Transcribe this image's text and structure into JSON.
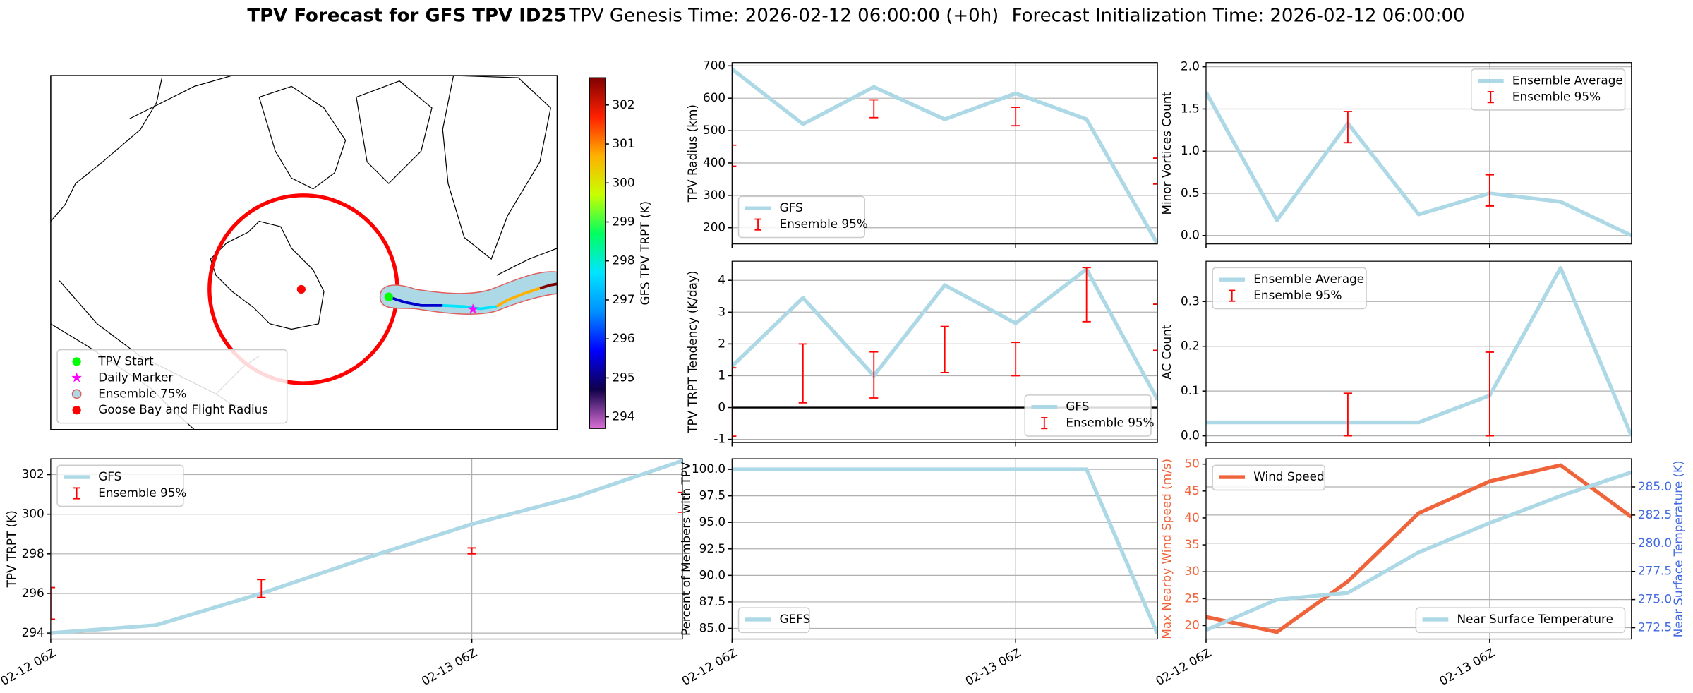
{
  "figure": {
    "title": "TPV Forecast for GFS TPV ID25",
    "subtitles": [
      "TPV Genesis Time: 2026-02-12 06:00:00 (+0h)",
      "Forecast Initialization Time: 2026-02-12 06:00:00"
    ]
  },
  "chart_data": [
    {
      "type": "map",
      "legend": "lower left",
      "legend_entries": [
        {
          "label": "TPV Start",
          "color": "#00ff00",
          "marker": "circle"
        },
        {
          "label": "Daily Marker",
          "color": "#ff00ff",
          "marker": "star"
        },
        {
          "label": "Ensemble 75%",
          "color": "#add8e6",
          "marker": "patch"
        },
        {
          "label": "Goose Bay and Flight Radius",
          "color": "#ff0000",
          "marker": "circle"
        }
      ],
      "colorbar": {
        "label": "GFS TPV TRPT (K)",
        "lim": [
          293.7,
          302.7
        ],
        "ticks": [
          294,
          295,
          296,
          297,
          298,
          299,
          300,
          301,
          302
        ],
        "colors": [
          "#da70d6",
          "#10004a",
          "#0000ff",
          "#0090ff",
          "#00e5ff",
          "#00ff60",
          "#c8ff00",
          "#ffb000",
          "#ff2000",
          "#800000"
        ]
      }
    },
    {
      "type": "line",
      "ylabel": "TPV Radius (km)",
      "x": [
        0,
        6,
        12,
        18,
        24,
        30,
        36
      ],
      "xlim": [
        0,
        36
      ],
      "xticks": [
        0,
        24
      ],
      "ylim": [
        150,
        710
      ],
      "yticks": [
        200,
        300,
        400,
        500,
        600,
        700
      ],
      "grid": true,
      "legend": "lower left",
      "series": [
        {
          "name": "GFS",
          "color": "#add8e6",
          "values": [
            690,
            520,
            635,
            535,
            615,
            535,
            150
          ]
        }
      ],
      "ensemble": {
        "name": "Ensemble 95%",
        "color": "#ff0000",
        "x": [
          0,
          12,
          24,
          36
        ],
        "low": [
          390,
          540,
          515,
          335
        ],
        "high": [
          455,
          595,
          572,
          415
        ]
      }
    },
    {
      "type": "line",
      "ylabel": "Minor Vortices Count",
      "x": [
        0,
        6,
        12,
        18,
        24,
        30,
        36
      ],
      "xlim": [
        0,
        36
      ],
      "xticks": [
        0,
        24
      ],
      "ylim": [
        -0.1,
        2.05
      ],
      "yticks": [
        {
          "value": 0,
          "label": "0.0"
        },
        {
          "value": 0.5,
          "label": "0.5"
        },
        {
          "value": 1,
          "label": "1.0"
        },
        {
          "value": 1.5,
          "label": "1.5"
        },
        {
          "value": 2,
          "label": "2.0"
        }
      ],
      "grid": true,
      "legend": "upper right",
      "series": [
        {
          "name": "Ensemble Average",
          "color": "#add8e6",
          "values": [
            1.7,
            0.18,
            1.33,
            0.25,
            0.5,
            0.4,
            0.0
          ]
        }
      ],
      "ensemble": {
        "name": "Ensemble 95%",
        "color": "#ff0000",
        "x": [
          12,
          24
        ],
        "low": [
          1.1,
          0.35
        ],
        "high": [
          1.47,
          0.72
        ]
      }
    },
    {
      "type": "line",
      "ylabel": "TPV TRPT Tendency (K/day)",
      "x": [
        0,
        6,
        12,
        18,
        24,
        30,
        36
      ],
      "xlim": [
        0,
        36
      ],
      "xticks": [
        0,
        24
      ],
      "ylim": [
        -1.1,
        4.6
      ],
      "yticks": [
        -1,
        0,
        1,
        2,
        3,
        4
      ],
      "grid": true,
      "legend": "lower right",
      "reference_line": 0,
      "series": [
        {
          "name": "GFS",
          "color": "#add8e6",
          "values": [
            1.3,
            3.45,
            1.0,
            3.85,
            2.65,
            4.35,
            0.25
          ]
        }
      ],
      "ensemble": {
        "name": "Ensemble 95%",
        "color": "#ff0000",
        "x": [
          0,
          6,
          12,
          18,
          24,
          30,
          36
        ],
        "low": [
          -0.9,
          0.15,
          0.3,
          1.1,
          1.0,
          2.7,
          1.8
        ],
        "high": [
          1.25,
          2.0,
          1.75,
          2.55,
          2.05,
          4.4,
          3.25
        ]
      }
    },
    {
      "type": "line",
      "ylabel": "AC Count",
      "x": [
        0,
        6,
        12,
        18,
        24,
        30,
        36
      ],
      "xlim": [
        0,
        36
      ],
      "xticks": [
        0,
        24
      ],
      "ylim": [
        -0.015,
        0.39
      ],
      "yticks": [
        {
          "value": 0,
          "label": "0.0"
        },
        {
          "value": 0.1,
          "label": "0.1"
        },
        {
          "value": 0.2,
          "label": "0.2"
        },
        {
          "value": 0.3,
          "label": "0.3"
        }
      ],
      "grid": true,
      "legend": "upper left",
      "series": [
        {
          "name": "Ensemble Average",
          "color": "#add8e6",
          "values": [
            0.03,
            0.03,
            0.03,
            0.03,
            0.09,
            0.375,
            0.0
          ]
        }
      ],
      "ensemble": {
        "name": "Ensemble 95%",
        "color": "#ff0000",
        "x": [
          12,
          24
        ],
        "low": [
          0,
          0
        ],
        "high": [
          0.095,
          0.187
        ]
      }
    },
    {
      "type": "line",
      "ylabel": "TPV TRPT (K)",
      "x": [
        0,
        6,
        12,
        18,
        24,
        30,
        36
      ],
      "xlim": [
        0,
        36
      ],
      "xticks": [
        {
          "value": 0,
          "label": "02-12 06Z"
        },
        {
          "value": 24,
          "label": "02-13 06Z"
        }
      ],
      "ylim": [
        293.7,
        302.8
      ],
      "yticks": [
        294,
        296,
        298,
        300,
        302
      ],
      "grid": true,
      "legend": "upper left",
      "series": [
        {
          "name": "GFS",
          "color": "#add8e6",
          "values": [
            294.0,
            294.4,
            296.0,
            297.8,
            299.5,
            300.9,
            302.7
          ]
        }
      ],
      "ensemble": {
        "name": "Ensemble 95%",
        "color": "#ff0000",
        "x": [
          0,
          12,
          24,
          36
        ],
        "low": [
          294.7,
          295.8,
          298.0,
          300.1
        ],
        "high": [
          296.3,
          296.7,
          298.3,
          301.1
        ]
      }
    },
    {
      "type": "line",
      "ylabel": "Percent of Members with TPV",
      "x": [
        0,
        6,
        12,
        18,
        24,
        30,
        36
      ],
      "xlim": [
        0,
        36
      ],
      "xticks": [
        {
          "value": 0,
          "label": "02-12 06Z"
        },
        {
          "value": 24,
          "label": "02-13 06Z"
        }
      ],
      "ylim": [
        84,
        101
      ],
      "yticks": [
        {
          "value": 85,
          "label": "85.0"
        },
        {
          "value": 87.5,
          "label": "87.5"
        },
        {
          "value": 90,
          "label": "90.0"
        },
        {
          "value": 92.5,
          "label": "92.5"
        },
        {
          "value": 95,
          "label": "95.0"
        },
        {
          "value": 97.5,
          "label": "97.5"
        },
        {
          "value": 100,
          "label": "100.0"
        }
      ],
      "grid": true,
      "legend": "lower left",
      "series": [
        {
          "name": "GEFS",
          "color": "#add8e6",
          "values": [
            100,
            100,
            100,
            100,
            100,
            100,
            84.5
          ]
        }
      ]
    },
    {
      "type": "line",
      "ylabel": "Max Nearby Wind Speed (m/s)",
      "y2label": "Near Surface Temperature (K)",
      "y_color": "#f0643c",
      "y2_color": "#4169e1",
      "x": [
        0,
        6,
        12,
        18,
        24,
        30,
        36
      ],
      "xlim": [
        0,
        36
      ],
      "xticks": [
        {
          "value": 0,
          "label": "02-12 06Z"
        },
        {
          "value": 24,
          "label": "02-13 06Z"
        }
      ],
      "ylim": [
        17.5,
        51
      ],
      "yticks": [
        20,
        25,
        30,
        35,
        40,
        45,
        50
      ],
      "y2lim": [
        271.5,
        287.5
      ],
      "y2ticks": [
        {
          "value": 272.5,
          "label": "272.5"
        },
        {
          "value": 275,
          "label": "275.0"
        },
        {
          "value": 277.5,
          "label": "277.5"
        },
        {
          "value": 280,
          "label": "280.0"
        },
        {
          "value": 282.5,
          "label": "282.5"
        },
        {
          "value": 285,
          "label": "285.0"
        }
      ],
      "grid": true,
      "legend": "upper left",
      "legend2": "lower right",
      "series": [
        {
          "name": "Wind Speed",
          "color": "#f0643c",
          "values": [
            21.6,
            18.8,
            28.2,
            40.9,
            46.8,
            49.8,
            40.2
          ]
        },
        {
          "name": "Near Surface Temperature",
          "color": "#add8e6",
          "axis": "y2",
          "values": [
            272.3,
            275.0,
            275.6,
            279.2,
            281.8,
            284.2,
            286.3
          ]
        }
      ]
    }
  ]
}
